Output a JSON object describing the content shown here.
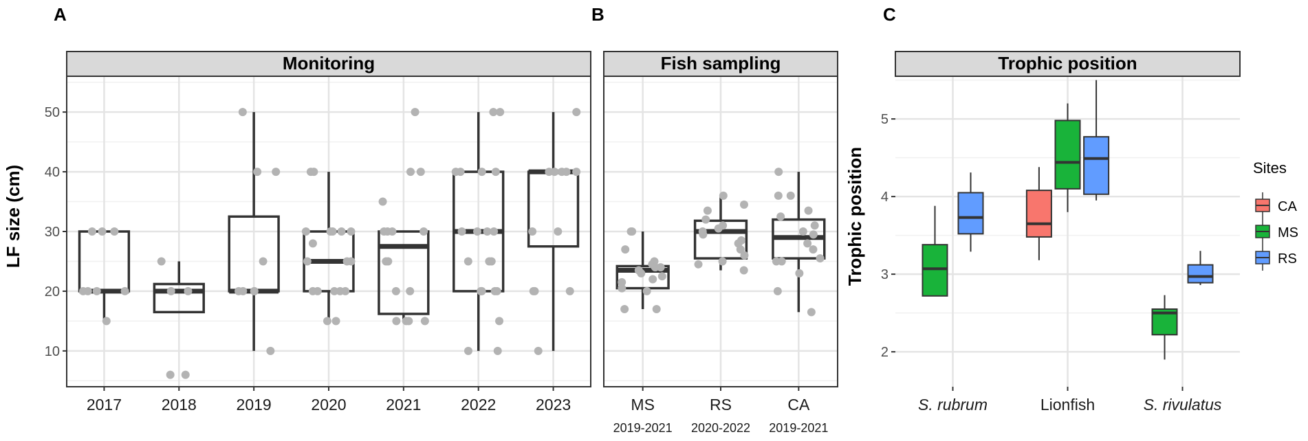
{
  "panel_labels": [
    "A",
    "B",
    "C"
  ],
  "colors": {
    "panel_bg": "#ffffff",
    "grid": "#e4e4e4",
    "strip_bg": "#d9d9d9",
    "points": "#b3b3b3",
    "box_line": "#333333",
    "CA": "#f8766d",
    "MS": "#19b33a",
    "RS": "#619cff"
  },
  "chart_data": [
    {
      "id": "A",
      "type": "box",
      "title": "Monitoring",
      "ylabel": "LF size (cm)",
      "ylim": [
        4,
        56
      ],
      "yticks": [
        10,
        20,
        30,
        40,
        50
      ],
      "grid": true,
      "categories": [
        "2017",
        "2018",
        "2019",
        "2020",
        "2021",
        "2022",
        "2023"
      ],
      "boxes": [
        {
          "category": "2017",
          "min": 15,
          "q1": 20,
          "median": 20,
          "q3": 30,
          "max": 30
        },
        {
          "category": "2018",
          "min": 16.5,
          "q1": 16.5,
          "median": 20,
          "q3": 21.2,
          "max": 25
        },
        {
          "category": "2019",
          "min": 10,
          "q1": 20,
          "median": 20,
          "q3": 32.5,
          "max": 50
        },
        {
          "category": "2020",
          "min": 15,
          "q1": 20,
          "median": 25,
          "q3": 30,
          "max": 40
        },
        {
          "category": "2021",
          "min": 15,
          "q1": 16.2,
          "median": 27.5,
          "q3": 30,
          "max": 30
        },
        {
          "category": "2022",
          "min": 10,
          "q1": 20,
          "median": 30,
          "q3": 40,
          "max": 50
        },
        {
          "category": "2023",
          "min": 10,
          "q1": 27.5,
          "median": 40,
          "q3": 40,
          "max": 50
        }
      ],
      "points": [
        {
          "category": "2017",
          "values": [
            30,
            30,
            30,
            20,
            20,
            20,
            20,
            15
          ]
        },
        {
          "category": "2018",
          "values": [
            25,
            20,
            20,
            6,
            6
          ]
        },
        {
          "category": "2019",
          "values": [
            50,
            40,
            40,
            25,
            20,
            20,
            20,
            20,
            10
          ]
        },
        {
          "category": "2020",
          "values": [
            40,
            40,
            30,
            30,
            30,
            30,
            30,
            28,
            25,
            25,
            25,
            20,
            20,
            20,
            20,
            20,
            15,
            15
          ]
        },
        {
          "category": "2021",
          "values": [
            50,
            40,
            40,
            35,
            30,
            30,
            30,
            30,
            25,
            25,
            20,
            20,
            15,
            15,
            15,
            15
          ]
        },
        {
          "category": "2022",
          "values": [
            50,
            50,
            40,
            40,
            40,
            40,
            30,
            30,
            30,
            30,
            25,
            25,
            25,
            20,
            20,
            20,
            20,
            15,
            10,
            10
          ]
        },
        {
          "category": "2023",
          "values": [
            50,
            40,
            40,
            40,
            40,
            40,
            30,
            30,
            20,
            20,
            20,
            10
          ]
        }
      ]
    },
    {
      "id": "B",
      "type": "box",
      "title": "Fish sampling",
      "ylim": [
        4,
        56
      ],
      "grid": true,
      "categories": [
        "MS",
        "RS",
        "CA"
      ],
      "category_sublabels": [
        "2019-2021",
        "2020-2022",
        "2019-2021"
      ],
      "boxes": [
        {
          "category": "MS",
          "min": 17,
          "q1": 20.5,
          "median": 23.5,
          "q3": 24.2,
          "max": 30
        },
        {
          "category": "RS",
          "min": 23.5,
          "q1": 25.5,
          "median": 30,
          "q3": 31.8,
          "max": 36
        },
        {
          "category": "CA",
          "min": 16.5,
          "q1": 25.5,
          "median": 29,
          "q3": 32,
          "max": 40
        }
      ],
      "points": [
        {
          "category": "MS",
          "values": [
            30,
            30,
            27,
            25,
            24.5,
            24,
            24,
            23.5,
            23,
            22.5,
            22,
            21.5,
            20.5,
            20,
            17,
            17
          ]
        },
        {
          "category": "RS",
          "values": [
            36,
            34.5,
            33.5,
            32,
            31,
            30.5,
            30,
            29.5,
            28.5,
            28,
            27,
            26,
            25,
            24.5,
            23.5
          ]
        },
        {
          "category": "CA",
          "values": [
            40,
            36,
            36,
            33.5,
            32.5,
            31,
            30,
            29.5,
            28,
            27,
            25.5,
            25,
            25,
            23,
            20,
            16.5
          ]
        }
      ]
    },
    {
      "id": "C",
      "type": "box",
      "title": "Trophic position",
      "ylabel": "Trophic position",
      "ylim": [
        1.55,
        5.55
      ],
      "yticks": [
        2,
        3,
        4,
        5
      ],
      "grid": true,
      "categories": [
        "S. rubrum",
        "Lionfish",
        "S. rivulatus"
      ],
      "category_italic": [
        true,
        false,
        true
      ],
      "legend": {
        "title": "Sites",
        "entries": [
          "CA",
          "MS",
          "RS"
        ],
        "position": "right"
      },
      "series": [
        {
          "name": "CA",
          "boxes": [
            {
              "category": "Lionfish",
              "min": 3.18,
              "q1": 3.48,
              "median": 3.65,
              "q3": 4.08,
              "max": 4.38
            }
          ]
        },
        {
          "name": "MS",
          "boxes": [
            {
              "category": "S. rubrum",
              "min": 2.72,
              "q1": 2.72,
              "median": 3.07,
              "q3": 3.38,
              "max": 3.88
            },
            {
              "category": "Lionfish",
              "min": 3.8,
              "q1": 4.1,
              "median": 4.44,
              "q3": 4.98,
              "max": 5.2
            },
            {
              "category": "S. rivulatus",
              "min": 1.9,
              "q1": 2.22,
              "median": 2.5,
              "q3": 2.55,
              "max": 2.73
            }
          ]
        },
        {
          "name": "RS",
          "boxes": [
            {
              "category": "S. rubrum",
              "min": 3.29,
              "q1": 3.52,
              "median": 3.73,
              "q3": 4.05,
              "max": 4.31
            },
            {
              "category": "Lionfish",
              "min": 3.95,
              "q1": 4.03,
              "median": 4.49,
              "q3": 4.77,
              "max": 5.5
            },
            {
              "category": "S. rivulatus",
              "min": 2.86,
              "q1": 2.89,
              "median": 2.97,
              "q3": 3.12,
              "max": 3.3
            }
          ]
        }
      ]
    }
  ]
}
